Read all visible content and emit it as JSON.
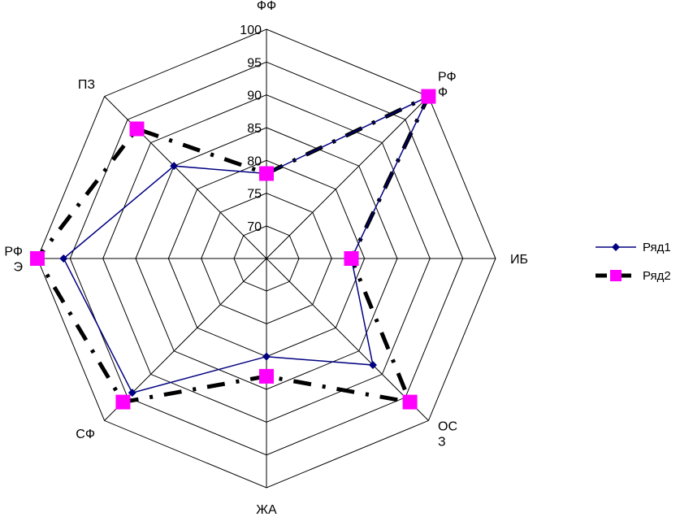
{
  "chart_data": {
    "type": "radar",
    "categories": [
      "ФФ",
      "РФ Ф",
      "ИБ",
      "ОС З",
      "ЖА",
      "СФ",
      "РФ Э",
      "ПЗ"
    ],
    "category_lines": [
      [
        "ФФ"
      ],
      [
        "РФ",
        "Ф"
      ],
      [
        "ИБ"
      ],
      [
        "ОС",
        "З"
      ],
      [
        "ЖА"
      ],
      [
        "СФ"
      ],
      [
        "РФ",
        "Э"
      ],
      [
        "ПЗ"
      ]
    ],
    "rlim": [
      70,
      100
    ],
    "ticks": [
      "70",
      "75",
      "80",
      "85",
      "90",
      "95",
      "100"
    ],
    "tick_values": [
      70,
      75,
      80,
      85,
      90,
      95,
      100
    ],
    "grid": true,
    "legend_position": "right",
    "series": [
      {
        "name": "Ряд1",
        "values": [
          78,
          100,
          78,
          88,
          80,
          94,
          96,
          85
        ],
        "color": "#000080",
        "marker": "diamond",
        "line": "solid"
      },
      {
        "name": "Ряд2",
        "values": [
          78,
          100,
          78,
          96,
          83,
          96,
          100,
          93
        ],
        "color": "#000000",
        "marker_color": "#FF00FF",
        "marker": "square",
        "line": "dash-dot"
      }
    ]
  }
}
